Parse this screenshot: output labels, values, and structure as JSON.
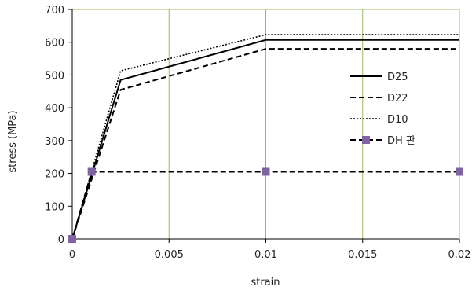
{
  "chart_data": {
    "type": "line",
    "title": "",
    "xlabel": "strain",
    "ylabel": "stress (MPa)",
    "xlim": [
      0,
      0.02
    ],
    "ylim": [
      0,
      700
    ],
    "x_ticks": [
      0,
      0.005,
      0.01,
      0.015,
      0.02
    ],
    "x_tick_labels": [
      "0",
      "0.005",
      "0.01",
      "0.015",
      "0.02"
    ],
    "y_ticks": [
      0,
      100,
      200,
      300,
      400,
      500,
      600,
      700
    ],
    "y_tick_labels": [
      "0",
      "100",
      "200",
      "300",
      "400",
      "500",
      "600",
      "700"
    ],
    "grid": "vertical",
    "legend_position": "right",
    "series": [
      {
        "name": "D25",
        "style": "solid",
        "color": "#000000",
        "x": [
          0,
          0.0025,
          0.01,
          0.02
        ],
        "y": [
          0,
          485,
          607,
          607
        ]
      },
      {
        "name": "D22",
        "style": "dashed",
        "color": "#000000",
        "x": [
          0,
          0.0025,
          0.01,
          0.02
        ],
        "y": [
          0,
          455,
          580,
          580
        ]
      },
      {
        "name": "D10",
        "style": "dotted",
        "color": "#000000",
        "x": [
          0,
          0.0025,
          0.01,
          0.02
        ],
        "y": [
          0,
          513,
          623,
          623
        ]
      },
      {
        "name": "DH 판",
        "style": "dashed-marker",
        "color": "#000000",
        "marker_color": "#8064a2",
        "x": [
          0,
          0.001,
          0.01,
          0.02
        ],
        "y": [
          0,
          205,
          205,
          205
        ]
      }
    ]
  },
  "colors": {
    "plot_border": "#9bbb59",
    "grid": "#9bbb59"
  }
}
